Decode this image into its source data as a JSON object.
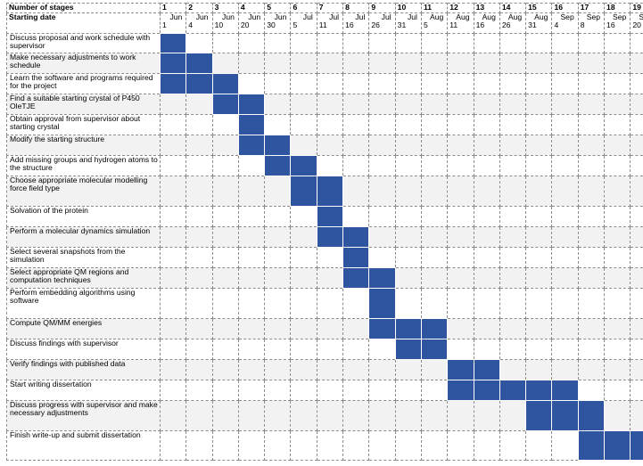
{
  "header": {
    "stages_label": "Number of stages",
    "date_label": "Starting date"
  },
  "stages": [
    {
      "num": "1",
      "month": "Jun",
      "day": "1"
    },
    {
      "num": "2",
      "month": "Jun",
      "day": "4"
    },
    {
      "num": "3",
      "month": "Jun",
      "day": "10"
    },
    {
      "num": "4",
      "month": "Jun",
      "day": "20"
    },
    {
      "num": "5",
      "month": "Jun",
      "day": "30"
    },
    {
      "num": "6",
      "month": "Jul",
      "day": "5"
    },
    {
      "num": "7",
      "month": "Jul",
      "day": "11"
    },
    {
      "num": "8",
      "month": "Jul",
      "day": "16"
    },
    {
      "num": "9",
      "month": "Jul",
      "day": "26"
    },
    {
      "num": "10",
      "month": "Jul",
      "day": "31"
    },
    {
      "num": "11",
      "month": "Aug",
      "day": "5"
    },
    {
      "num": "12",
      "month": "Aug",
      "day": "11"
    },
    {
      "num": "13",
      "month": "Aug",
      "day": "16"
    },
    {
      "num": "14",
      "month": "Aug",
      "day": "26"
    },
    {
      "num": "15",
      "month": "Aug",
      "day": "31"
    },
    {
      "num": "16",
      "month": "Sep",
      "day": "4"
    },
    {
      "num": "17",
      "month": "Sep",
      "day": "8"
    },
    {
      "num": "18",
      "month": "Sep",
      "day": "16"
    },
    {
      "num": "19",
      "month": "Sep",
      "day": "20"
    }
  ],
  "tasks": [
    {
      "label": "Discuss proposal and work schedule with supervisor",
      "start": 1,
      "end": 1
    },
    {
      "label": "Make necessary adjustments to work schedule",
      "start": 1,
      "end": 2
    },
    {
      "label": "Learn the software and programs required for the project",
      "start": 1,
      "end": 3
    },
    {
      "label": "Find a suitable starting crystal of P450 OleTJE",
      "start": 3,
      "end": 4
    },
    {
      "label": "Obtain approval from supervisor about starting crystal",
      "start": 4,
      "end": 4
    },
    {
      "label": "Modify the starting structure",
      "start": 4,
      "end": 5
    },
    {
      "label": "Add missing groups and hydrogen atoms to the structure",
      "start": 5,
      "end": 6
    },
    {
      "label": "Choose appropriate molecular modelling force field type",
      "start": 6,
      "end": 7
    },
    {
      "label": "Solvation of the protein",
      "start": 7,
      "end": 7
    },
    {
      "label": "Perform a molecular dynamics simulation",
      "start": 7,
      "end": 8
    },
    {
      "label": "Select several snapshots from the simulation",
      "start": 8,
      "end": 8
    },
    {
      "label": "Select appropriate QM regions and computation techniques",
      "start": 8,
      "end": 9
    },
    {
      "label": "Perform embedding algorithms using software",
      "start": 9,
      "end": 9
    },
    {
      "label": "Compute QM/MM energies",
      "start": 9,
      "end": 11
    },
    {
      "label": "Discuss findings with supervisor",
      "start": 10,
      "end": 11
    },
    {
      "label": "Verify findings with published data",
      "start": 12,
      "end": 13
    },
    {
      "label": "Start writing dissertation",
      "start": 12,
      "end": 16
    },
    {
      "label": "Discuss progress with supervisor and make necessary adjustments",
      "start": 15,
      "end": 17
    },
    {
      "label": "Finish write-up and submit dissertation",
      "start": 17,
      "end": 19
    }
  ],
  "bar_color": "#2f55a0"
}
